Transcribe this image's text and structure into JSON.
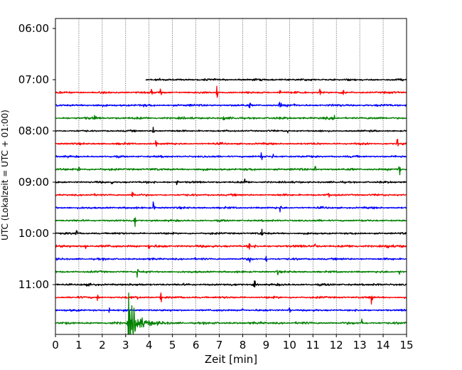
{
  "chart_data": {
    "type": "line",
    "title": "",
    "xlabel": "Zeit  [min]",
    "ylabel": "UTC (Lokalzeit = UTC + 01:00)",
    "xlim": [
      0,
      15
    ],
    "x_ticks": [
      "0",
      "1",
      "2",
      "3",
      "4",
      "5",
      "6",
      "7",
      "8",
      "9",
      "10",
      "11",
      "12",
      "13",
      "14",
      "15"
    ],
    "y_ticks": [
      "06:00",
      "07:00",
      "08:00",
      "09:00",
      "10:00",
      "11:00"
    ],
    "grid": "vertical dotted at each minute",
    "legend": "none",
    "colors": [
      "#000000",
      "#ff0000",
      "#0000ff",
      "#008000"
    ],
    "series": [
      {
        "row_time": "07:00",
        "color": "#000000",
        "start_min": 3.85,
        "noise": 0.8,
        "events": []
      },
      {
        "row_time": "07:15",
        "color": "#ff0000",
        "start_min": 0,
        "noise": 0.8,
        "events": [
          [
            4.1,
            3
          ],
          [
            4.5,
            4
          ],
          [
            6.9,
            6
          ],
          [
            9.6,
            3
          ],
          [
            11.3,
            3
          ],
          [
            12.3,
            4
          ]
        ]
      },
      {
        "row_time": "07:30",
        "color": "#0000ff",
        "start_min": 0,
        "noise": 0.9,
        "events": [
          [
            8.3,
            3
          ],
          [
            9.6,
            6
          ],
          [
            10.2,
            3
          ]
        ]
      },
      {
        "row_time": "07:45",
        "color": "#008000",
        "start_min": 0,
        "noise": 0.9,
        "events": [
          [
            1.7,
            4
          ],
          [
            7.2,
            3
          ],
          [
            11.9,
            3
          ]
        ]
      },
      {
        "row_time": "08:00",
        "color": "#000000",
        "start_min": 0,
        "noise": 0.7,
        "events": [
          [
            4.2,
            7
          ],
          [
            9.9,
            3
          ]
        ]
      },
      {
        "row_time": "08:15",
        "color": "#ff0000",
        "start_min": 0,
        "noise": 0.8,
        "events": [
          [
            4.3,
            3
          ],
          [
            14.6,
            7
          ]
        ]
      },
      {
        "row_time": "08:30",
        "color": "#0000ff",
        "start_min": 0,
        "noise": 0.8,
        "events": [
          [
            8.8,
            4
          ],
          [
            9.3,
            3
          ]
        ]
      },
      {
        "row_time": "08:45",
        "color": "#008000",
        "start_min": 0,
        "noise": 0.9,
        "events": [
          [
            1.0,
            3
          ],
          [
            11.1,
            4
          ],
          [
            14.7,
            7
          ]
        ]
      },
      {
        "row_time": "09:00",
        "color": "#000000",
        "start_min": 0,
        "noise": 0.8,
        "events": [
          [
            2.4,
            3
          ],
          [
            5.2,
            3
          ],
          [
            8.1,
            5
          ]
        ]
      },
      {
        "row_time": "09:15",
        "color": "#ff0000",
        "start_min": 0,
        "noise": 0.8,
        "events": [
          [
            3.3,
            6
          ],
          [
            11.7,
            3
          ]
        ]
      },
      {
        "row_time": "09:30",
        "color": "#0000ff",
        "start_min": 0,
        "noise": 0.8,
        "events": [
          [
            4.2,
            7
          ],
          [
            9.6,
            4
          ]
        ]
      },
      {
        "row_time": "09:45",
        "color": "#008000",
        "start_min": 0,
        "noise": 0.8,
        "events": [
          [
            3.4,
            6
          ]
        ]
      },
      {
        "row_time": "10:00",
        "color": "#000000",
        "start_min": 0,
        "noise": 0.8,
        "events": [
          [
            0.9,
            4
          ],
          [
            8.8,
            7
          ]
        ]
      },
      {
        "row_time": "10:15",
        "color": "#ff0000",
        "start_min": 0,
        "noise": 1.0,
        "events": [
          [
            1.3,
            3
          ],
          [
            4.0,
            3
          ],
          [
            8.3,
            4
          ],
          [
            11.1,
            4
          ],
          [
            14.2,
            7
          ]
        ]
      },
      {
        "row_time": "10:30",
        "color": "#0000ff",
        "start_min": 0,
        "noise": 0.8,
        "events": [
          [
            8.3,
            5
          ],
          [
            9.0,
            3
          ]
        ]
      },
      {
        "row_time": "10:45",
        "color": "#008000",
        "start_min": 0,
        "noise": 0.8,
        "events": [
          [
            3.5,
            5
          ],
          [
            9.5,
            3
          ],
          [
            14.7,
            4
          ]
        ]
      },
      {
        "row_time": "11:00",
        "color": "#000000",
        "start_min": 0,
        "noise": 0.9,
        "events": [
          [
            8.5,
            8
          ]
        ]
      },
      {
        "row_time": "11:15",
        "color": "#ff0000",
        "start_min": 0,
        "noise": 0.8,
        "events": [
          [
            1.8,
            4
          ],
          [
            3.5,
            3
          ],
          [
            4.5,
            5
          ],
          [
            13.5,
            7
          ]
        ]
      },
      {
        "row_time": "11:30",
        "color": "#0000ff",
        "start_min": 0,
        "noise": 0.8,
        "events": [
          [
            2.3,
            3
          ],
          [
            8.0,
            4
          ],
          [
            10.0,
            4
          ]
        ]
      },
      {
        "row_time": "11:45",
        "color": "#008000",
        "start_min": 0,
        "noise": 0.9,
        "events": [
          [
            3.15,
            22
          ],
          [
            13.1,
            5
          ]
        ]
      }
    ]
  }
}
